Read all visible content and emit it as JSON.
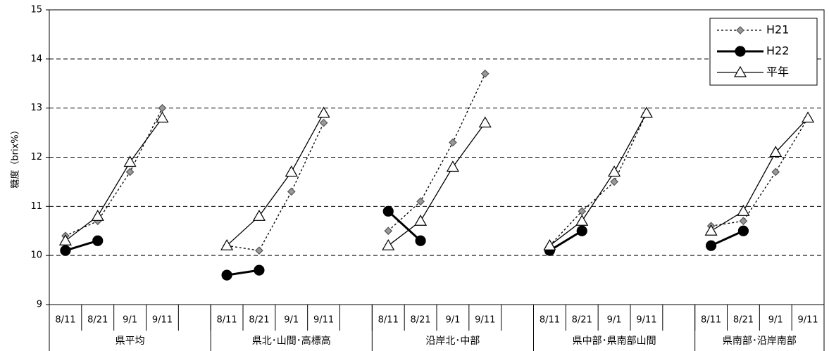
{
  "chart_data": {
    "type": "line",
    "y_label": "糖度（brix%）",
    "categories": [
      "8/11",
      "8/21",
      "9/1",
      "9/11",
      null,
      "8/11",
      "8/21",
      "9/1",
      "9/11",
      null,
      "8/11",
      "8/21",
      "9/1",
      "9/11",
      null,
      "8/11",
      "8/21",
      "9/1",
      "9/11",
      null,
      "8/11",
      "8/21",
      "9/1",
      "9/11"
    ],
    "groups": [
      "県平均",
      "県北･山間･高標高",
      "沿岸北･中部",
      "県中部･県南部山間",
      "県南部･沿岸南部"
    ],
    "ylim": [
      9,
      15
    ],
    "yticks": [
      9,
      10,
      11,
      12,
      13,
      14,
      15
    ],
    "grid": true,
    "legend": "top-right",
    "series": [
      {
        "name": "H21",
        "color": "#999999",
        "marker": "diamond",
        "dash": true,
        "values": [
          10.4,
          10.7,
          11.7,
          13.0,
          null,
          10.2,
          10.1,
          11.3,
          12.7,
          null,
          10.5,
          11.1,
          12.3,
          13.7,
          null,
          10.2,
          10.9,
          11.5,
          12.9,
          null,
          10.6,
          10.7,
          11.7,
          12.8
        ]
      },
      {
        "name": "H22",
        "color": "#000000",
        "marker": "circle",
        "dash": false,
        "values": [
          10.1,
          10.3,
          null,
          null,
          null,
          9.6,
          9.7,
          null,
          null,
          null,
          10.9,
          10.3,
          null,
          null,
          null,
          10.1,
          10.5,
          null,
          null,
          null,
          10.2,
          10.5,
          null,
          null
        ]
      },
      {
        "name": "平年",
        "color": "#ffffff",
        "marker": "triangle",
        "dash": false,
        "values": [
          10.3,
          10.8,
          11.9,
          12.8,
          null,
          10.2,
          10.8,
          11.7,
          12.9,
          null,
          10.2,
          10.7,
          11.8,
          12.7,
          null,
          10.2,
          10.7,
          11.7,
          12.9,
          null,
          10.5,
          10.9,
          12.1,
          12.8
        ]
      }
    ]
  }
}
